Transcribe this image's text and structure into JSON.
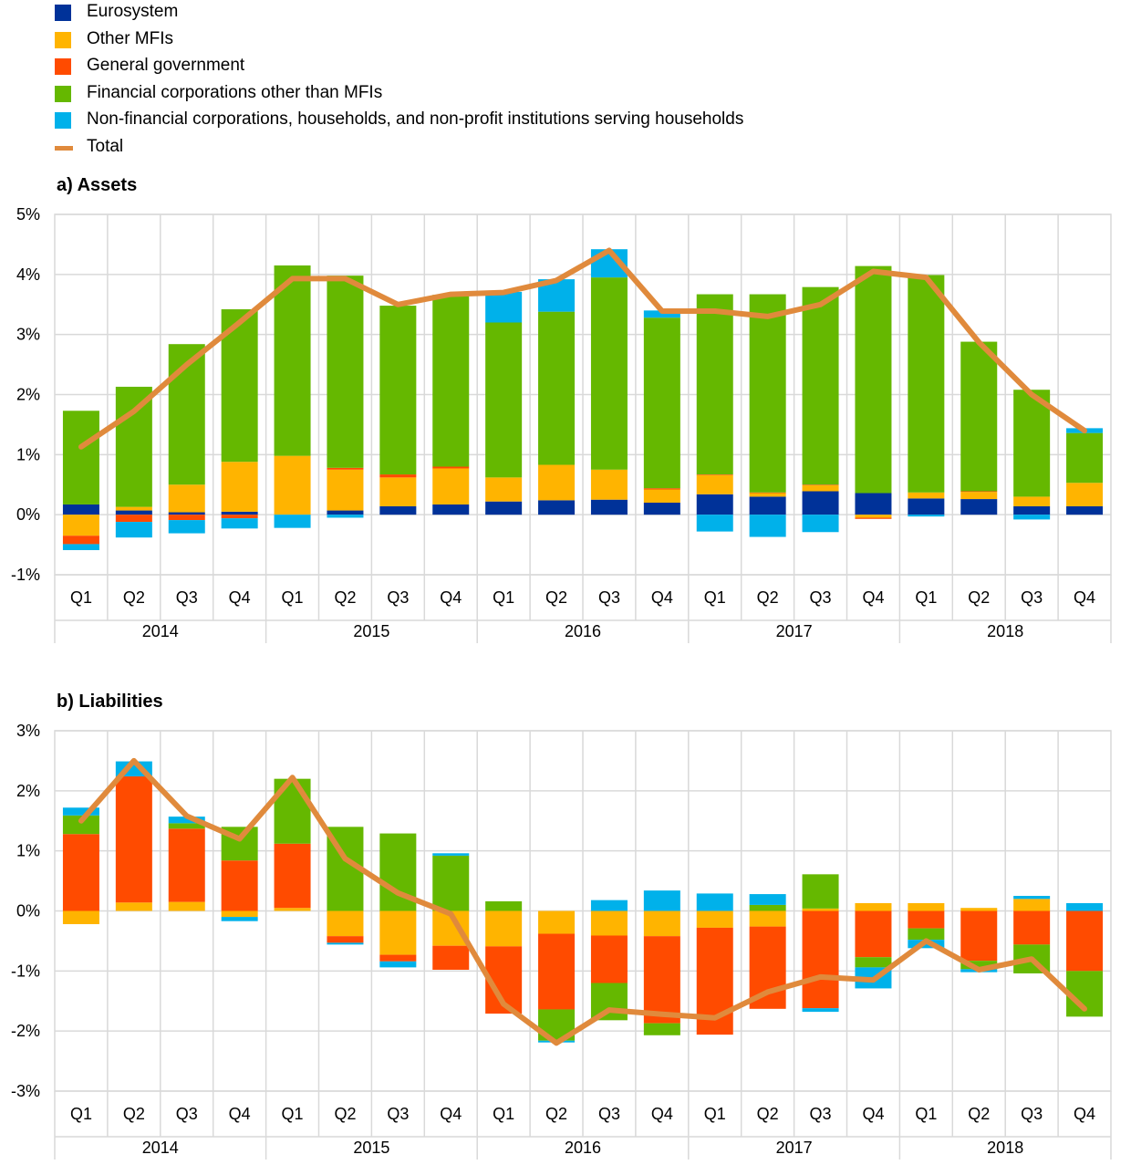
{
  "legend": [
    {
      "label": "Eurosystem",
      "color": "#003299",
      "kind": "box"
    },
    {
      "label": "Other MFIs",
      "color": "#FFB400",
      "kind": "box"
    },
    {
      "label": "General government",
      "color": "#FF4B00",
      "kind": "box"
    },
    {
      "label": "Financial corporations other than MFIs",
      "color": "#65B800",
      "kind": "box"
    },
    {
      "label": "Non-financial corporations, households, and non-profit institutions serving households",
      "color": "#00B1EA",
      "kind": "box"
    },
    {
      "label": "Total",
      "color": "#E08A3C",
      "kind": "line"
    }
  ],
  "chart_data": [
    {
      "type": "bar",
      "stacked": true,
      "title": "a) Assets",
      "ylim": [
        -1,
        5
      ],
      "yticks": [
        "-1%",
        "0%",
        "1%",
        "2%",
        "3%",
        "4%",
        "5%"
      ],
      "categories": [
        "Q1",
        "Q2",
        "Q3",
        "Q4",
        "Q1",
        "Q2",
        "Q3",
        "Q4",
        "Q1",
        "Q2",
        "Q3",
        "Q4",
        "Q1",
        "Q2",
        "Q3",
        "Q4",
        "Q1",
        "Q2",
        "Q3",
        "Q4"
      ],
      "years": [
        "2014",
        "2015",
        "2016",
        "2017",
        "2018"
      ],
      "series": [
        {
          "name": "Eurosystem",
          "values": [
            0.17,
            0.07,
            0.04,
            0.05,
            0.0,
            0.07,
            0.14,
            0.17,
            0.22,
            0.24,
            0.25,
            0.2,
            0.34,
            0.3,
            0.39,
            0.36,
            0.27,
            0.26,
            0.14,
            0.14
          ]
        },
        {
          "name": "Other MFIs",
          "values": [
            -0.35,
            0.06,
            0.46,
            0.83,
            0.98,
            0.68,
            0.48,
            0.6,
            0.4,
            0.59,
            0.5,
            0.22,
            0.32,
            0.06,
            0.1,
            -0.05,
            0.1,
            0.12,
            0.16,
            0.39
          ]
        },
        {
          "name": "General government",
          "values": [
            -0.14,
            -0.12,
            -0.09,
            -0.06,
            0.0,
            0.03,
            0.05,
            0.03,
            0.0,
            0.0,
            0.0,
            0.02,
            0.01,
            0.01,
            0.01,
            -0.02,
            0.0,
            0.01,
            0.0,
            0.0
          ]
        },
        {
          "name": "Financial corporations other than MFIs",
          "values": [
            1.56,
            2.0,
            2.34,
            2.54,
            3.17,
            3.2,
            2.81,
            2.86,
            2.58,
            2.55,
            3.2,
            2.84,
            3.0,
            3.3,
            3.29,
            3.78,
            3.62,
            2.49,
            1.78,
            0.83
          ]
        },
        {
          "name": "Non-financial corporations, households, and non-profit institutions serving households",
          "values": [
            -0.1,
            -0.26,
            -0.22,
            -0.17,
            -0.22,
            -0.05,
            0.0,
            0.0,
            0.51,
            0.54,
            0.47,
            0.12,
            -0.28,
            -0.37,
            -0.29,
            0.0,
            -0.03,
            0.0,
            -0.08,
            0.08
          ]
        },
        {
          "name": "Total",
          "values": [
            1.13,
            1.72,
            2.5,
            3.2,
            3.93,
            3.93,
            3.5,
            3.67,
            3.7,
            3.9,
            4.4,
            3.39,
            3.39,
            3.3,
            3.5,
            4.05,
            3.95,
            2.87,
            2.0,
            1.4
          ]
        }
      ]
    },
    {
      "type": "bar",
      "stacked": true,
      "title": "b) Liabilities",
      "ylim": [
        -3,
        3
      ],
      "yticks": [
        "-3%",
        "-2%",
        "-1%",
        "0%",
        "1%",
        "2%",
        "3%"
      ],
      "categories": [
        "Q1",
        "Q2",
        "Q3",
        "Q4",
        "Q1",
        "Q2",
        "Q3",
        "Q4",
        "Q1",
        "Q2",
        "Q3",
        "Q4",
        "Q1",
        "Q2",
        "Q3",
        "Q4",
        "Q1",
        "Q2",
        "Q3",
        "Q4"
      ],
      "years": [
        "2014",
        "2015",
        "2016",
        "2017",
        "2018"
      ],
      "series": [
        {
          "name": "Eurosystem",
          "values": [
            0,
            0,
            0,
            0,
            0,
            0,
            0,
            0,
            0,
            0,
            0,
            0,
            0,
            0,
            0,
            0,
            0,
            0,
            0,
            0
          ]
        },
        {
          "name": "Other MFIs",
          "values": [
            -0.22,
            0.14,
            0.15,
            -0.1,
            0.05,
            -0.42,
            -0.73,
            -0.58,
            -0.59,
            -0.38,
            -0.41,
            -0.42,
            -0.28,
            -0.26,
            0.04,
            0.13,
            0.13,
            0.05,
            0.2,
            0.0
          ]
        },
        {
          "name": "General government",
          "values": [
            1.28,
            2.1,
            1.22,
            0.84,
            1.07,
            -0.11,
            -0.11,
            -0.4,
            -1.12,
            -1.26,
            -0.79,
            -1.45,
            -1.78,
            -1.37,
            -1.62,
            -0.77,
            -0.29,
            -0.83,
            -0.56,
            -1.0
          ]
        },
        {
          "name": "Financial corporations other than MFIs",
          "values": [
            0.31,
            0.0,
            0.09,
            0.56,
            1.08,
            1.4,
            1.29,
            0.92,
            0.16,
            -0.52,
            -0.62,
            -0.2,
            0.0,
            0.1,
            0.57,
            -0.17,
            -0.19,
            -0.14,
            -0.48,
            -0.76
          ]
        },
        {
          "name": "Non-financial corporations, households, and non-profit institutions serving households",
          "values": [
            0.13,
            0.25,
            0.11,
            -0.07,
            0.0,
            -0.03,
            -0.1,
            0.04,
            0.0,
            -0.03,
            0.18,
            0.34,
            0.29,
            0.18,
            -0.06,
            -0.35,
            -0.14,
            -0.05,
            0.05,
            0.13
          ]
        },
        {
          "name": "Total",
          "values": [
            1.5,
            2.5,
            1.58,
            1.2,
            2.22,
            0.87,
            0.3,
            -0.05,
            -1.55,
            -2.2,
            -1.65,
            -1.72,
            -1.78,
            -1.35,
            -1.1,
            -1.15,
            -0.5,
            -0.98,
            -0.8,
            -1.63
          ]
        }
      ]
    }
  ]
}
